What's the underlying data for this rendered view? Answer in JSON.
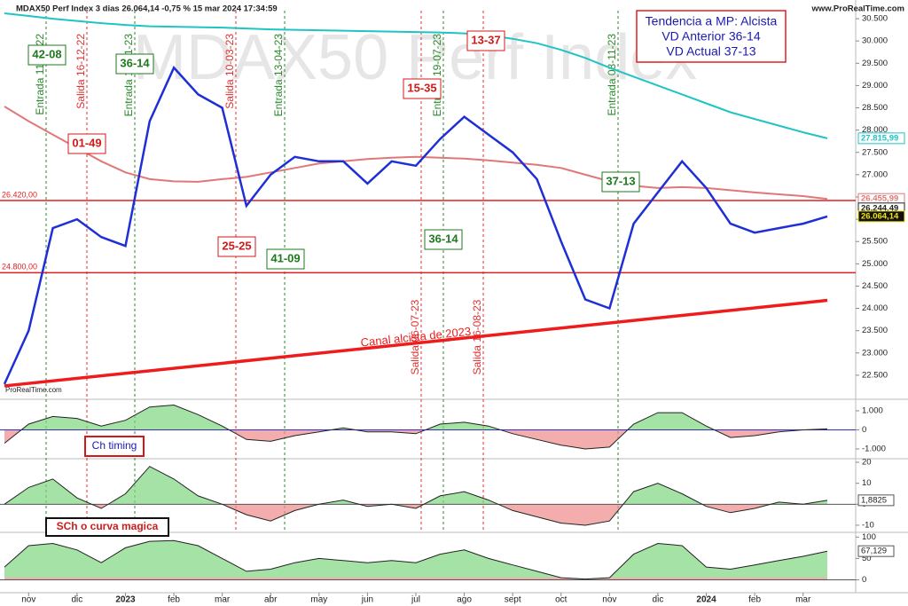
{
  "chart_data": [
    {
      "type": "line",
      "title": "MDAX50 Perf Index 3 dias 26.064,14 -0,75 % 15 mar 2024 17:34:59",
      "watermark": "MDAX50 Perf Index",
      "source": "www.ProRealTime.com",
      "source_small": "ProRealTime.com",
      "categories": [
        null,
        "nov",
        null,
        "dic",
        null,
        "2023",
        null,
        "feb",
        null,
        "mar",
        null,
        "abr",
        null,
        "may",
        null,
        "jun",
        null,
        "jul",
        null,
        "ago",
        null,
        "sept",
        null,
        "oct",
        null,
        "nov",
        null,
        "dic",
        null,
        "2024",
        null,
        "feb",
        null,
        "mar",
        null
      ],
      "series": [
        {
          "color": "#20c4c4",
          "values": [
            30620,
            30560,
            30500,
            30450,
            30400,
            30360,
            30330,
            30320,
            30310,
            30300,
            30280,
            30260,
            30250,
            30240,
            30230,
            30220,
            30210,
            30200,
            30190,
            30170,
            30130,
            30050,
            29950,
            29800,
            29620,
            29400,
            29200,
            29000,
            28800,
            28600,
            28400,
            28250,
            28100,
            27950,
            27816
          ]
        },
        {
          "color": "#e07878",
          "values": [
            28530,
            28200,
            27900,
            27600,
            27300,
            27050,
            26900,
            26850,
            26840,
            26900,
            26950,
            27050,
            27150,
            27250,
            27300,
            27350,
            27380,
            27400,
            27380,
            27360,
            27320,
            27270,
            27220,
            27150,
            27000,
            26850,
            26750,
            26700,
            26720,
            26700,
            26650,
            26600,
            26560,
            26520,
            26456
          ]
        },
        {
          "color": "#1f2fd6",
          "values": [
            22300,
            23500,
            25800,
            26000,
            25600,
            25400,
            28200,
            29400,
            28800,
            28500,
            26300,
            27000,
            27400,
            27300,
            27300,
            26800,
            27300,
            27200,
            27800,
            28300,
            27900,
            27500,
            26900,
            25500,
            24200,
            24000,
            25900,
            26600,
            27300,
            26700,
            25900,
            25700,
            25800,
            25900,
            26064
          ]
        }
      ],
      "ylim": [
        22000,
        30760
      ],
      "yticks": [
        {
          "value": 22500,
          "label": "22.500"
        },
        {
          "value": 23000,
          "label": "23.000"
        },
        {
          "value": 23500,
          "label": "23.500"
        },
        {
          "value": 24000,
          "label": "24.000"
        },
        {
          "value": 24500,
          "label": "24.500"
        },
        {
          "value": 25000,
          "label": "25.000"
        },
        {
          "value": 25500,
          "label": "25.500"
        },
        {
          "value": 26000,
          "label": "26.000"
        },
        {
          "value": 26500,
          "label": "26.500"
        },
        {
          "value": 27000,
          "label": "27.000"
        },
        {
          "value": 27500,
          "label": "27.500"
        },
        {
          "value": 28000,
          "label": "28.000"
        },
        {
          "value": 28500,
          "label": "28.500"
        },
        {
          "value": 29000,
          "label": "29.000"
        },
        {
          "value": 29500,
          "label": "29.500"
        },
        {
          "value": 30000,
          "label": "30.000"
        },
        {
          "value": 30500,
          "label": "30.500"
        }
      ],
      "hlines": [
        {
          "value": 26420,
          "label": "26.420,00",
          "color": "#e02020"
        },
        {
          "value": 24800,
          "label": "24.800,00",
          "color": "#e02020"
        }
      ],
      "trend": {
        "values": [
          22260,
          24180
        ],
        "label": "Canal alcista de 2023",
        "color": "#ee1c1c"
      },
      "price_labels": [
        {
          "value": 27815.99,
          "label": "27.815,99",
          "color": "#20c4c4"
        },
        {
          "value": 26455.99,
          "label": "26.455,99",
          "color": "#e07878"
        },
        {
          "value": 26244.49,
          "label": "26.244,49",
          "color": "#222222"
        },
        {
          "value": 26064.14,
          "label": "26.064,14",
          "color": "#f2e600"
        }
      ],
      "annotations": [
        "42-08",
        "36-14",
        "01-49",
        "15-35",
        "13-37",
        "25-25",
        "41-09",
        "36-14",
        "37-13"
      ],
      "signals": [
        "Entrada 11-11-22",
        "Salida 16-12-22",
        "Entrada 18-01-23",
        "Salida 10-03-23",
        "Entrada 13-04-23",
        "Salida 06-07-23",
        "Entrada 19-07-23",
        "Salida 16-08-23",
        "Entrada 08-11-23"
      ],
      "info_box": [
        "Tendencia a MP: Alcista",
        "VD Anterior 36-14",
        "VD Actual 37-13"
      ]
    },
    {
      "type": "line",
      "label": "Ch timing",
      "values": [
        -700,
        300,
        700,
        600,
        200,
        500,
        1200,
        1300,
        800,
        200,
        -500,
        -600,
        -300,
        -100,
        100,
        -100,
        -100,
        -200,
        300,
        400,
        200,
        -200,
        -500,
        -800,
        -1000,
        -900,
        300,
        900,
        900,
        200,
        -400,
        -300,
        -100,
        0,
        50
      ],
      "ylim": [
        -1510,
        1510
      ],
      "yticks": [
        {
          "value": 1000,
          "label": "1.000"
        },
        0,
        {
          "value": -1000,
          "label": "-1.000"
        }
      ]
    },
    {
      "type": "line",
      "values": [
        0,
        8,
        12,
        3,
        -2,
        5,
        18,
        12,
        4,
        0,
        -5,
        -8,
        -3,
        0,
        2,
        -1,
        0,
        -2,
        4,
        6,
        2,
        -3,
        -6,
        -9,
        -10,
        -8,
        6,
        10,
        5,
        -1,
        -4,
        -2,
        1,
        0,
        1.8825
      ],
      "value_labels": [
        null,
        null,
        null,
        null,
        null,
        null,
        null,
        null,
        null,
        null,
        null,
        null,
        null,
        null,
        null,
        null,
        null,
        null,
        null,
        null,
        null,
        null,
        null,
        null,
        null,
        null,
        null,
        null,
        null,
        null,
        null,
        null,
        null,
        null,
        "1,8825"
      ],
      "ylim": [
        -13.4,
        21.7
      ],
      "yticks": [
        20,
        10,
        0,
        -10
      ]
    },
    {
      "type": "line",
      "label": "SCh o curva magica",
      "values": [
        30,
        80,
        85,
        70,
        40,
        75,
        90,
        92,
        80,
        50,
        20,
        25,
        40,
        50,
        45,
        40,
        45,
        40,
        60,
        70,
        50,
        35,
        20,
        5,
        2,
        5,
        60,
        85,
        80,
        30,
        25,
        35,
        45,
        55,
        67.129
      ],
      "value_labels": [
        null,
        null,
        null,
        null,
        null,
        null,
        null,
        null,
        null,
        null,
        null,
        null,
        null,
        null,
        null,
        null,
        null,
        null,
        null,
        null,
        null,
        null,
        null,
        null,
        null,
        null,
        null,
        null,
        null,
        null,
        null,
        null,
        null,
        null,
        "67,129"
      ],
      "ylim": [
        -30,
        111
      ],
      "yticks": [
        100,
        50,
        0
      ]
    }
  ]
}
